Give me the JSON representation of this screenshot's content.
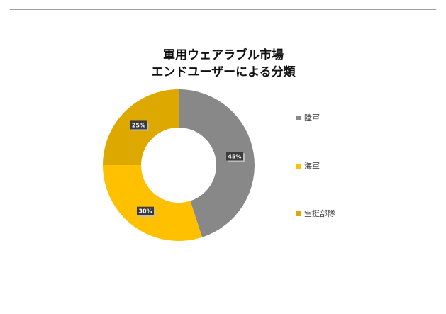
{
  "chart_data": {
    "type": "pie",
    "title_lines": [
      "軍用ウェアラブル市場",
      "エンドユーザーによる分類"
    ],
    "categories": [
      "陸軍",
      "海軍",
      "空挺部隊"
    ],
    "values": [
      45,
      30,
      25
    ],
    "data_labels": [
      "45%",
      "30%",
      "25%"
    ],
    "colors": [
      "#888888",
      "#FFC000",
      "#DDA800"
    ],
    "donut": true,
    "legend_position": "right"
  }
}
